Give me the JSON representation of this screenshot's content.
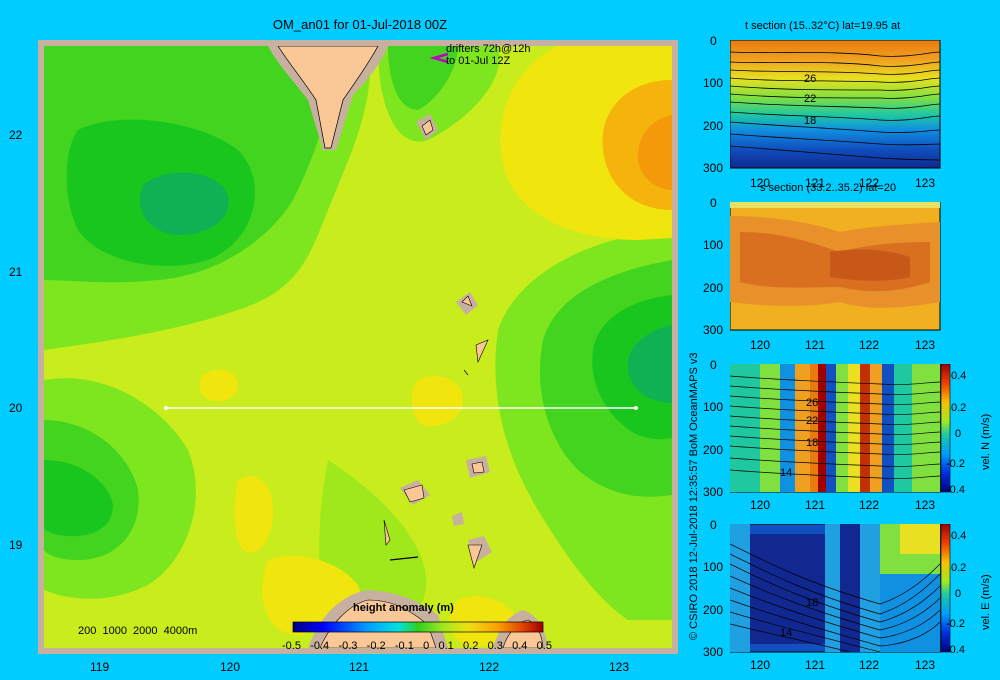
{
  "map": {
    "title": "OM_an01 for 01-Jul-2018 00Z",
    "drifters_line1": "drifters 72h@12h",
    "drifters_line2": "to 01-Jul 12Z",
    "lat_ticks": [
      "22",
      "21",
      "20",
      "19"
    ],
    "lon_ticks": [
      "119",
      "120",
      "121",
      "122",
      "123"
    ],
    "depth_legend": "200  1000  2000  4000m",
    "colorbar_title": "height anomaly  (m)",
    "colorbar_ticks": [
      "-0.5",
      "-0.4",
      "-0.3",
      "-0.2",
      "-0.1",
      "0",
      "0.1",
      "0.2",
      "0.3",
      "0.4",
      "0.5"
    ]
  },
  "credit": "© CSIRO 2018   12-Jul-2018 12:35:57 BoM OceanMAPS v3",
  "panels": {
    "t_section": {
      "title": "t section (15..32°C) lat=19.95 at",
      "contour_labels": [
        "26",
        "22",
        "18"
      ]
    },
    "s_section": {
      "title": "s section (33.2..35.2) lat=20"
    },
    "vn_section": {
      "side_label": "vel. N  (m/s)",
      "contour_labels": [
        "26",
        "22",
        "18",
        "14"
      ],
      "colorbar_ticks": [
        "0.4",
        "0.2",
        "0",
        "-0.2",
        "-0.4"
      ]
    },
    "ve_section": {
      "side_label": "vel. E  (m/s)",
      "contour_labels": [
        "18",
        "14"
      ],
      "colorbar_ticks": [
        "0.4",
        "0.2",
        "0",
        "-0.2",
        "-0.4"
      ]
    },
    "depth_ticks": [
      "0",
      "100",
      "200",
      "300"
    ],
    "lon_ticks": [
      "120",
      "121",
      "122",
      "123"
    ]
  },
  "colors": {
    "background": "#00ccff",
    "land": "#f9c896",
    "shelf": "#c8b0a0"
  }
}
